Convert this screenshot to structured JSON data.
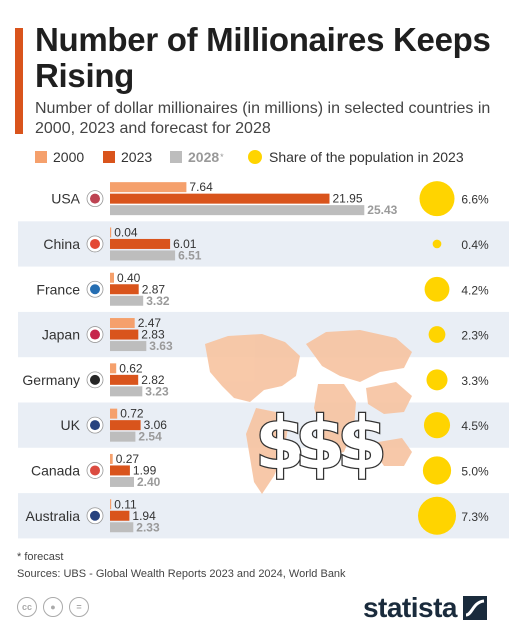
{
  "header": {
    "title": "Number of Millionaires Keeps Rising",
    "subtitle": "Number of dollar millionaires (in millions) in selected countries in 2000, 2023 and forecast for 2028"
  },
  "legend": {
    "y2000": "2000",
    "y2023": "2023",
    "y2028": "2028",
    "y2028_mark": "*",
    "share": "Share of the population in 2023"
  },
  "colors": {
    "y2000": "#f5a06c",
    "y2023": "#d9541c",
    "y2028": "#bdbdbd",
    "share": "#ffd400",
    "row_shade": "#e9eef5",
    "map": "#f7c3a0",
    "brand": "#1a2b3c"
  },
  "chart_data": {
    "type": "bar",
    "orientation": "horizontal",
    "categories": [
      "USA",
      "China",
      "France",
      "Japan",
      "Germany",
      "UK",
      "Canada",
      "Australia"
    ],
    "flags": [
      "us-flag-icon",
      "china-flag-icon",
      "france-flag-icon",
      "japan-flag-icon",
      "germany-flag-icon",
      "uk-flag-icon",
      "canada-flag-icon",
      "australia-flag-icon"
    ],
    "series": [
      {
        "name": "2000",
        "values": [
          7.64,
          0.04,
          0.4,
          2.47,
          0.62,
          0.72,
          0.27,
          0.11
        ]
      },
      {
        "name": "2023",
        "values": [
          21.95,
          6.01,
          2.87,
          2.83,
          2.82,
          3.06,
          1.99,
          1.94
        ]
      },
      {
        "name": "2028*",
        "values": [
          25.43,
          6.51,
          3.32,
          3.63,
          3.23,
          2.54,
          2.4,
          2.33
        ]
      }
    ],
    "share_of_population_2023": {
      "values": [
        6.6,
        0.4,
        4.2,
        2.3,
        3.3,
        4.5,
        5.0,
        7.3
      ],
      "labels": [
        "6.6%",
        "0.4%",
        "4.2%",
        "2.3%",
        "3.3%",
        "4.5%",
        "5.0%",
        "7.3%"
      ]
    },
    "value_labels": {
      "2000": [
        "7.64",
        "0.04",
        "0.40",
        "2.47",
        "0.62",
        "0.72",
        "0.27",
        "0.11"
      ],
      "2023": [
        "21.95",
        "6.01",
        "2.87",
        "2.83",
        "2.82",
        "3.06",
        "1.99",
        "1.94"
      ],
      "2028": [
        "25.43",
        "6.51",
        "3.32",
        "3.63",
        "3.23",
        "2.54",
        "2.40",
        "2.33"
      ]
    },
    "xlim": [
      0,
      26
    ],
    "grid": false
  },
  "footer": {
    "footnote": "* forecast",
    "sources": "Sources: UBS - Global Wealth Reports 2023 and 2024, World Bank",
    "license_icons": [
      "cc-icon",
      "by-icon",
      "nd-icon"
    ],
    "brand": "statista"
  }
}
